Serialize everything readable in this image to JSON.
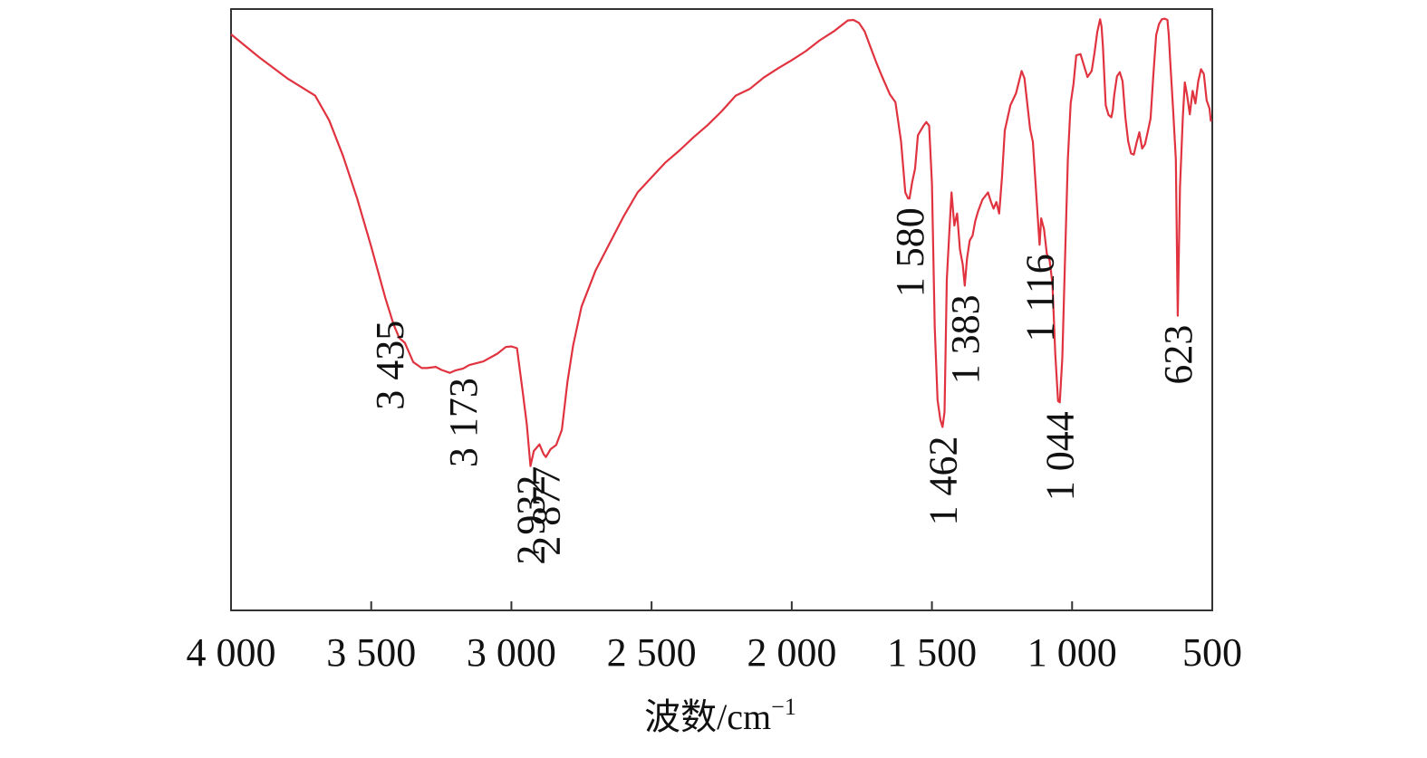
{
  "chart_data": {
    "type": "line",
    "title": "",
    "xlabel": "波数/cm",
    "xlabel_superscript": "−1",
    "ylabel": "",
    "xlim": [
      4000,
      500
    ],
    "ylim": [
      0,
      100
    ],
    "x_reversed": true,
    "grid": false,
    "xticks": [
      4000,
      3500,
      3000,
      2500,
      2000,
      1500,
      1000,
      500
    ],
    "xtick_labels": [
      "4 000",
      "3 500",
      "3 000",
      "2 500",
      "2 000",
      "1 500",
      "1 000",
      "500"
    ],
    "series": [
      {
        "color": "#e0333f",
        "points": [
          [
            4000,
            95.8
          ],
          [
            3900,
            92.0
          ],
          [
            3800,
            88.5
          ],
          [
            3700,
            85.6
          ],
          [
            3650,
            81.5
          ],
          [
            3600,
            75.5
          ],
          [
            3550,
            68.5
          ],
          [
            3500,
            60.5
          ],
          [
            3450,
            52.0
          ],
          [
            3420,
            47.5
          ],
          [
            3400,
            45.3
          ],
          [
            3380,
            44.5
          ],
          [
            3350,
            41.3
          ],
          [
            3320,
            40.3
          ],
          [
            3300,
            40.3
          ],
          [
            3270,
            40.5
          ],
          [
            3250,
            40.0
          ],
          [
            3220,
            39.5
          ],
          [
            3200,
            39.9
          ],
          [
            3173,
            40.2
          ],
          [
            3150,
            40.8
          ],
          [
            3100,
            41.4
          ],
          [
            3050,
            42.7
          ],
          [
            3020,
            43.8
          ],
          [
            3000,
            43.9
          ],
          [
            2980,
            43.6
          ],
          [
            2960,
            36.5
          ],
          [
            2945,
            31.0
          ],
          [
            2932,
            24.0
          ],
          [
            2920,
            26.5
          ],
          [
            2900,
            27.6
          ],
          [
            2885,
            26.0
          ],
          [
            2877,
            25.5
          ],
          [
            2860,
            26.8
          ],
          [
            2840,
            27.5
          ],
          [
            2820,
            30.0
          ],
          [
            2800,
            38.0
          ],
          [
            2780,
            44.0
          ],
          [
            2750,
            50.5
          ],
          [
            2700,
            56.5
          ],
          [
            2650,
            61.0
          ],
          [
            2600,
            65.5
          ],
          [
            2550,
            69.5
          ],
          [
            2500,
            72.0
          ],
          [
            2450,
            74.5
          ],
          [
            2400,
            76.5
          ],
          [
            2350,
            78.7
          ],
          [
            2300,
            80.7
          ],
          [
            2250,
            83.0
          ],
          [
            2200,
            85.6
          ],
          [
            2150,
            86.7
          ],
          [
            2100,
            88.6
          ],
          [
            2050,
            90.1
          ],
          [
            2000,
            91.5
          ],
          [
            1950,
            93.0
          ],
          [
            1900,
            94.8
          ],
          [
            1850,
            96.3
          ],
          [
            1800,
            98.1
          ],
          [
            1780,
            98.2
          ],
          [
            1760,
            97.7
          ],
          [
            1740,
            96.3
          ],
          [
            1720,
            93.8
          ],
          [
            1700,
            91.3
          ],
          [
            1680,
            89.0
          ],
          [
            1650,
            85.8
          ],
          [
            1630,
            84.5
          ],
          [
            1610,
            78.0
          ],
          [
            1595,
            69.5
          ],
          [
            1585,
            68.5
          ],
          [
            1580,
            68.5
          ],
          [
            1570,
            71.3
          ],
          [
            1560,
            73.5
          ],
          [
            1550,
            79.0
          ],
          [
            1530,
            80.6
          ],
          [
            1520,
            81.2
          ],
          [
            1510,
            80.6
          ],
          [
            1500,
            71.0
          ],
          [
            1490,
            47.0
          ],
          [
            1480,
            35.0
          ],
          [
            1470,
            31.7
          ],
          [
            1462,
            30.5
          ],
          [
            1455,
            33.0
          ],
          [
            1447,
            55.0
          ],
          [
            1440,
            61.0
          ],
          [
            1430,
            69.5
          ],
          [
            1420,
            64.0
          ],
          [
            1410,
            66.0
          ],
          [
            1400,
            60.0
          ],
          [
            1390,
            57.5
          ],
          [
            1383,
            54.0
          ],
          [
            1375,
            58.5
          ],
          [
            1365,
            61.5
          ],
          [
            1355,
            62.3
          ],
          [
            1345,
            64.8
          ],
          [
            1335,
            66.4
          ],
          [
            1320,
            68.3
          ],
          [
            1300,
            69.5
          ],
          [
            1290,
            68.0
          ],
          [
            1280,
            66.8
          ],
          [
            1270,
            67.9
          ],
          [
            1260,
            66.0
          ],
          [
            1250,
            72.0
          ],
          [
            1240,
            79.8
          ],
          [
            1220,
            84.0
          ],
          [
            1200,
            86.0
          ],
          [
            1180,
            89.7
          ],
          [
            1170,
            88.5
          ],
          [
            1160,
            84.3
          ],
          [
            1150,
            80.1
          ],
          [
            1140,
            77.9
          ],
          [
            1130,
            70.7
          ],
          [
            1120,
            63.5
          ],
          [
            1116,
            60.8
          ],
          [
            1110,
            65.2
          ],
          [
            1100,
            63.4
          ],
          [
            1090,
            59.3
          ],
          [
            1080,
            58.2
          ],
          [
            1070,
            54.3
          ],
          [
            1060,
            42.7
          ],
          [
            1050,
            34.8
          ],
          [
            1044,
            34.6
          ],
          [
            1035,
            42.0
          ],
          [
            1025,
            58.5
          ],
          [
            1015,
            75.0
          ],
          [
            1005,
            84.3
          ],
          [
            995,
            87.5
          ],
          [
            985,
            92.3
          ],
          [
            970,
            92.5
          ],
          [
            955,
            90.2
          ],
          [
            945,
            88.7
          ],
          [
            930,
            89.7
          ],
          [
            920,
            92.7
          ],
          [
            910,
            96.2
          ],
          [
            900,
            98.3
          ],
          [
            895,
            97.1
          ],
          [
            890,
            93.8
          ],
          [
            880,
            84.0
          ],
          [
            870,
            82.4
          ],
          [
            860,
            82.0
          ],
          [
            855,
            83.2
          ],
          [
            850,
            85.6
          ],
          [
            840,
            88.8
          ],
          [
            830,
            89.5
          ],
          [
            820,
            88.0
          ],
          [
            810,
            82.0
          ],
          [
            800,
            78.0
          ],
          [
            790,
            76.0
          ],
          [
            780,
            75.8
          ],
          [
            770,
            77.8
          ],
          [
            760,
            79.5
          ],
          [
            750,
            76.8
          ],
          [
            740,
            77.5
          ],
          [
            730,
            79.6
          ],
          [
            720,
            81.8
          ],
          [
            710,
            89.1
          ],
          [
            700,
            95.7
          ],
          [
            690,
            97.5
          ],
          [
            680,
            98.3
          ],
          [
            670,
            98.4
          ],
          [
            660,
            98.2
          ],
          [
            655,
            95.7
          ],
          [
            650,
            91.3
          ],
          [
            640,
            83.5
          ],
          [
            630,
            75.0
          ],
          [
            623,
            49.0
          ],
          [
            615,
            70.5
          ],
          [
            605,
            82.0
          ],
          [
            598,
            87.8
          ],
          [
            590,
            85.7
          ],
          [
            580,
            82.5
          ],
          [
            570,
            86.4
          ],
          [
            560,
            84.3
          ],
          [
            550,
            88.0
          ],
          [
            540,
            90.0
          ],
          [
            530,
            89.2
          ],
          [
            520,
            84.8
          ],
          [
            510,
            83.5
          ],
          [
            505,
            81.3
          ]
        ]
      }
    ],
    "annotations": [
      {
        "label": "3 435",
        "x": 3435
      },
      {
        "label": "3 173",
        "x": 3173
      },
      {
        "label": "2 932",
        "x": 2932
      },
      {
        "label": "2 877",
        "x": 2877
      },
      {
        "label": "1 580",
        "x": 1580
      },
      {
        "label": "1 462",
        "x": 1462
      },
      {
        "label": "1 383",
        "x": 1383
      },
      {
        "label": "1 116",
        "x": 1116
      },
      {
        "label": "1 044",
        "x": 1044
      },
      {
        "label": "623",
        "x": 623
      }
    ]
  }
}
